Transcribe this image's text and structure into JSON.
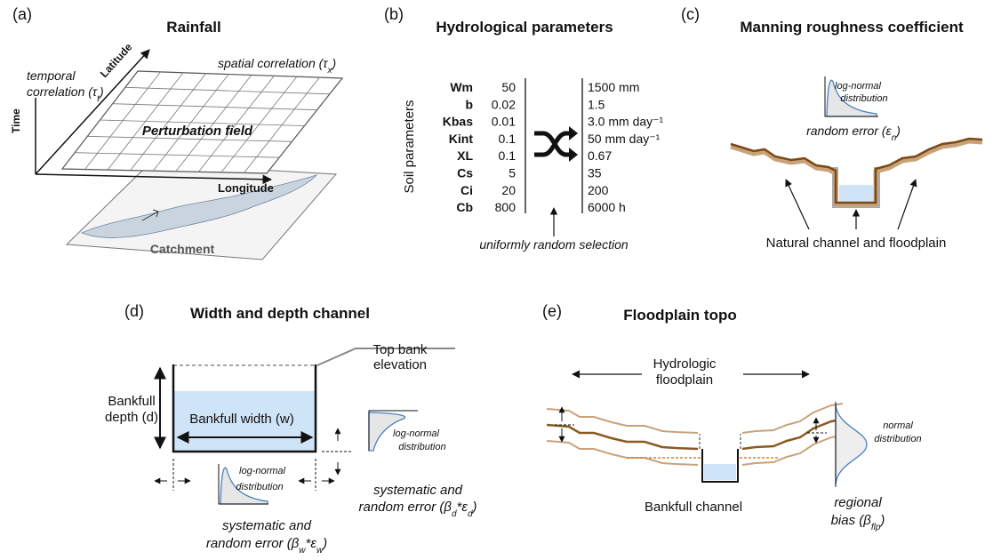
{
  "panel_a": {
    "label": "(a)",
    "title": "Rainfall",
    "temporal_line1": "temporal",
    "temporal_line2": [
      {
        "t": "correlation (τ"
      },
      {
        "sub": "t"
      },
      {
        "t": ")"
      }
    ],
    "latitude": "Latitude",
    "spatial": [
      {
        "t": "spatial correlation (τ"
      },
      {
        "sub": "x"
      },
      {
        "t": ")"
      }
    ],
    "time": "Time",
    "perturbation": "Perturbation field",
    "longitude": "Longitude",
    "catchment": "Catchment"
  },
  "panel_b": {
    "label": "(b)",
    "title": "Hydrological parameters",
    "side_label": "Soil parameters",
    "rows": [
      {
        "name": "Wm",
        "min": "50",
        "max": "1500 mm"
      },
      {
        "name": "b",
        "min": "0.02",
        "max": "1.5"
      },
      {
        "name": "Kbas",
        "min": "0.01",
        "max": "3.0 mm day⁻¹"
      },
      {
        "name": "Kint",
        "min": "0.1",
        "max": "50 mm day⁻¹"
      },
      {
        "name": "XL",
        "min": "0.1",
        "max": "0.67"
      },
      {
        "name": "Cs",
        "min": "5",
        "max": "35"
      },
      {
        "name": "Ci",
        "min": "20",
        "max": "200"
      },
      {
        "name": "Cb",
        "min": "800",
        "max": "6000 h"
      }
    ],
    "selection": "uniformly random selection"
  },
  "panel_c": {
    "label": "(c)",
    "title": "Manning roughness coefficient",
    "dist_line1": "log-normal",
    "dist_line2": "distribution",
    "error": [
      {
        "t": "random error (ε"
      },
      {
        "sub": "n"
      },
      {
        "t": ")"
      }
    ],
    "caption": "Natural channel and floodplain"
  },
  "panel_d": {
    "label": "(d)",
    "title": "Width and depth channel",
    "top_bank_line1": "Top bank",
    "top_bank_line2": "elevation",
    "depth_line1": "Bankfull",
    "depth_line2": "depth (d)",
    "width": "Bankfull width (w)",
    "right_dist_line1": "log-normal",
    "right_dist_line2": "distribution",
    "right_error_line1": "systematic and",
    "right_error_line2": [
      {
        "t": "random error (β"
      },
      {
        "sub": "d"
      },
      {
        "t": "*ε"
      },
      {
        "sub": "d"
      },
      {
        "t": ")"
      }
    ],
    "bottom_dist_line1": "log-normal",
    "bottom_dist_line2": "distribution",
    "bottom_error_line1": "systematic and",
    "bottom_error_line2": [
      {
        "t": "random error (β"
      },
      {
        "sub": "w"
      },
      {
        "t": "*ε"
      },
      {
        "sub": "w"
      },
      {
        "t": ")"
      }
    ]
  },
  "panel_e": {
    "label": "(e)",
    "title": "Floodplain topo",
    "floodplain_line1": "Hydrologic",
    "floodplain_line2": "floodplain",
    "dist_line1": "normal",
    "dist_line2": "distribution",
    "channel": "Bankfull channel",
    "bias_line1": "regional",
    "bias_line2": [
      {
        "t": "bias (β"
      },
      {
        "sub": "flp"
      },
      {
        "t": ")"
      }
    ]
  }
}
